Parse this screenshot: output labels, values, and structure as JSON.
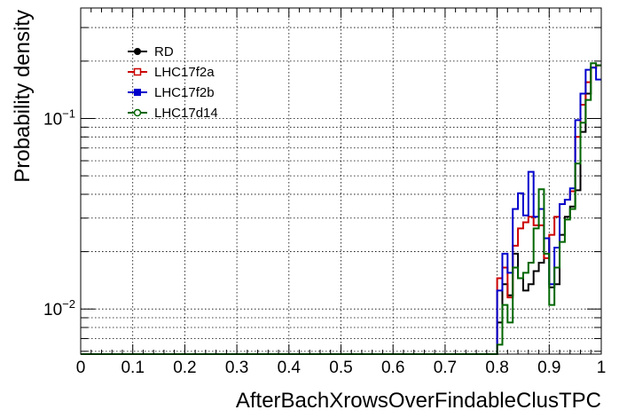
{
  "chart_data": {
    "type": "line",
    "step": true,
    "xlabel": "AfterBachXrowsOverFindableClusTPC",
    "ylabel": "Probability density",
    "xlim": [
      0,
      1
    ],
    "ylim": [
      0.0058,
      0.38
    ],
    "yscale": "log",
    "grid": true,
    "legend_position": "top-left",
    "x_ticks": [
      "0",
      "0.1",
      "0.2",
      "0.3",
      "0.4",
      "0.5",
      "0.6",
      "0.7",
      "0.8",
      "0.9",
      "1"
    ],
    "y_tick_labels": [
      {
        "value": 0.01,
        "base": "10",
        "exp": "−2"
      },
      {
        "value": 0.1,
        "base": "10",
        "exp": "−1"
      }
    ],
    "bin_edges": [
      0.8,
      0.81,
      0.82,
      0.83,
      0.84,
      0.85,
      0.86,
      0.87,
      0.88,
      0.89,
      0.9,
      0.91,
      0.92,
      0.93,
      0.94,
      0.95,
      0.96,
      0.97,
      0.98,
      0.99,
      1.0
    ],
    "baseline": 0.0058,
    "series": [
      {
        "name": "RD",
        "color": "#000000",
        "marker": "filled-circle",
        "values": [
          0.0085,
          0.0135,
          0.0118,
          0.0195,
          0.0145,
          0.0125,
          0.0135,
          0.0158,
          0.0175,
          0.0235,
          0.013,
          0.0135,
          0.0245,
          0.0305,
          0.0345,
          0.042,
          0.085,
          0.135,
          0.185,
          0.19
        ]
      },
      {
        "name": "LHC17f2a",
        "color": "#cc0000",
        "marker": "open-square",
        "values": [
          0.0145,
          0.0165,
          0.0115,
          0.0215,
          0.0265,
          0.0285,
          0.0305,
          0.0275,
          0.0275,
          0.0185,
          0.0245,
          0.0305,
          0.0355,
          0.0375,
          0.0415,
          0.08,
          0.118,
          0.155,
          0.185,
          0.19
        ]
      },
      {
        "name": "LHC17f2b",
        "color": "#0000cc",
        "marker": "filled-square",
        "values": [
          0.0125,
          0.0195,
          0.0155,
          0.0335,
          0.0405,
          0.031,
          0.0525,
          0.0305,
          0.0335,
          0.0235,
          0.0135,
          0.021,
          0.0355,
          0.0375,
          0.043,
          0.098,
          0.135,
          0.18,
          0.185,
          0.16
        ]
      },
      {
        "name": "LHC17d14",
        "color": "#006600",
        "marker": "open-circle",
        "values": [
          0.0065,
          0.0105,
          0.0085,
          0.0165,
          0.0145,
          0.0155,
          0.0175,
          0.0265,
          0.0425,
          0.0195,
          0.0105,
          0.0165,
          0.0225,
          0.0295,
          0.0335,
          0.058,
          0.095,
          0.125,
          0.195,
          0.19
        ]
      }
    ]
  }
}
